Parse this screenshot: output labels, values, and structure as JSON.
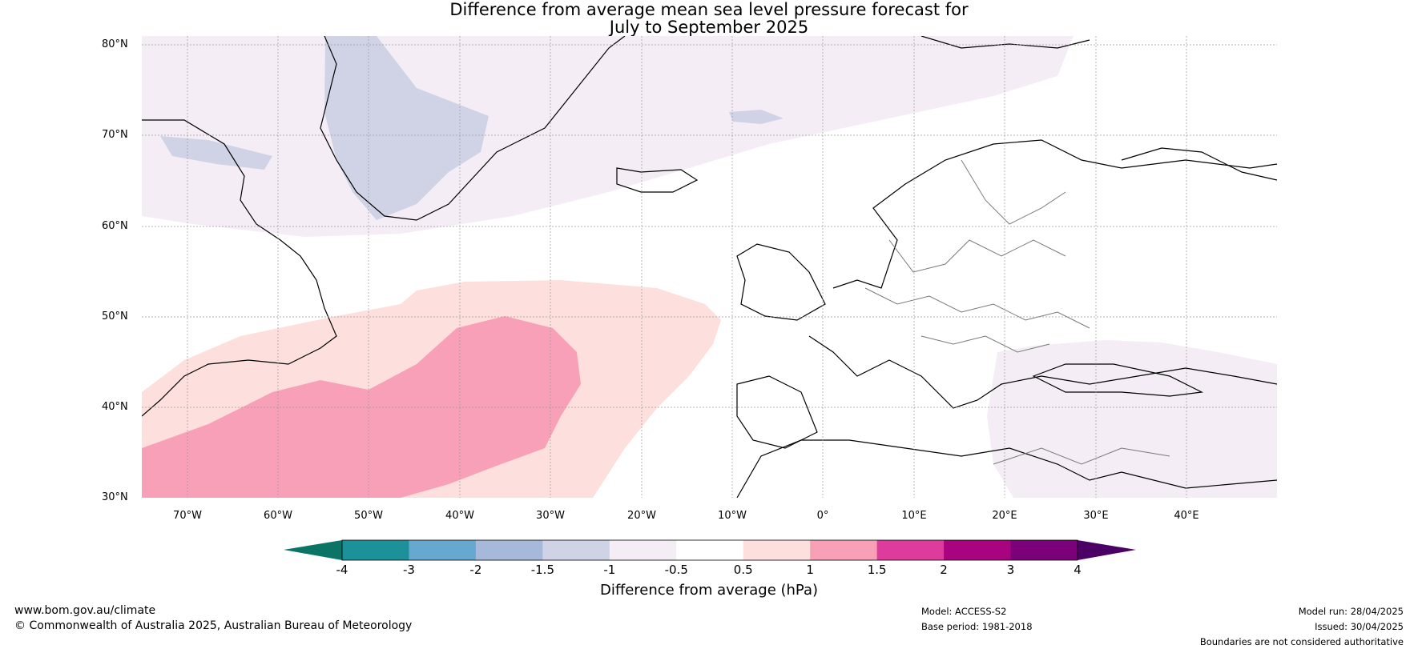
{
  "title": {
    "line1": "Difference from average mean sea level pressure forecast for",
    "line2": "July to September 2025"
  },
  "map": {
    "lat_labels": [
      "80°N",
      "70°N",
      "60°N",
      "50°N",
      "40°N",
      "30°N"
    ],
    "lon_labels": [
      "70°W",
      "60°W",
      "50°W",
      "40°W",
      "30°W",
      "20°W",
      "10°W",
      "0°",
      "10°E",
      "20°E",
      "30°E",
      "40°E"
    ],
    "lat_range": [
      30,
      80
    ],
    "lon_range": [
      -75,
      50
    ],
    "regions": [
      {
        "name": "greenland-atlantic-low",
        "category": "-1 to -0.5",
        "color": "#f4edf5"
      },
      {
        "name": "greenland-core-low",
        "category": "-1.5 to -1",
        "color": "#d0d3e6"
      },
      {
        "name": "atlantic-high-outer",
        "category": "0.5 to 1",
        "color": "#fddfdd"
      },
      {
        "name": "atlantic-high-inner",
        "category": "1 to 1.5",
        "color": "#f8a0b7"
      },
      {
        "name": "eastern-mediterranean-low",
        "category": "-1 to -0.5",
        "color": "#f4edf5"
      }
    ]
  },
  "colorbar": {
    "ticks": [
      "-4",
      "-3",
      "-2",
      "-1.5",
      "-1",
      "-0.5",
      "0.5",
      "1",
      "1.5",
      "2",
      "3",
      "4"
    ],
    "colors": [
      "#1d9199",
      "#67a8d0",
      "#a7b9da",
      "#d0d3e6",
      "#f4edf5",
      "#ffffff",
      "#fddfdd",
      "#f8a0b7",
      "#dd3c9c",
      "#a8047f",
      "#7a017a"
    ],
    "under_color": "#0a7565",
    "over_color": "#4b0066",
    "label": "Difference from average (hPa)"
  },
  "footer": {
    "website": "www.bom.gov.au/climate",
    "copyright": "© Commonwealth of Australia 2025, Australian Bureau of Meteorology",
    "model": "Model: ACCESS-S2",
    "base_period": "Base period: 1981-2018",
    "model_run": "Model run: 28/04/2025",
    "issued": "Issued: 30/04/2025",
    "disclaimer": "Boundaries are not considered authoritative"
  }
}
